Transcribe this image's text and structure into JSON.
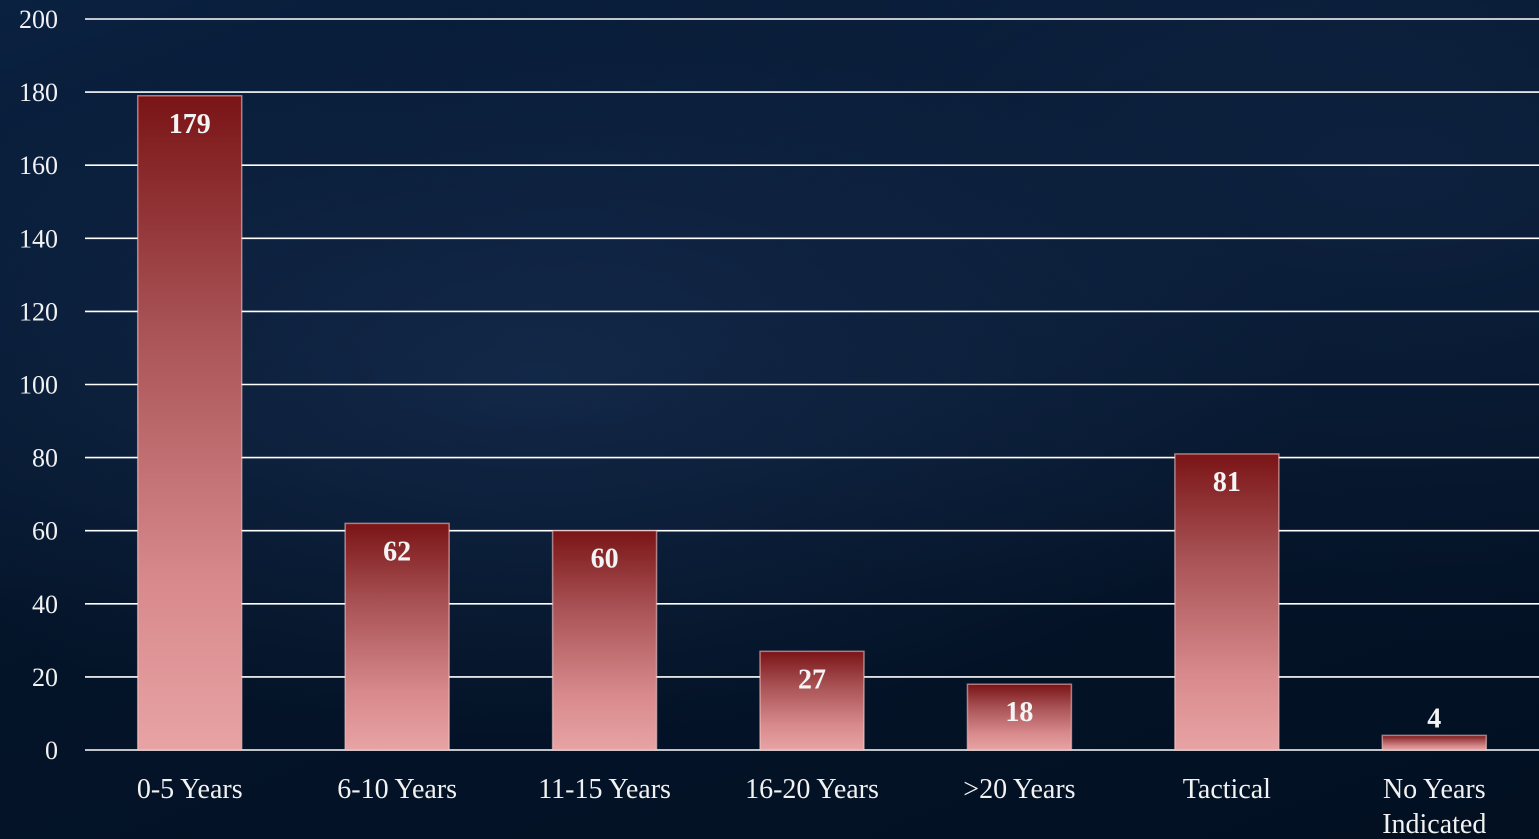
{
  "chart_data": {
    "type": "bar",
    "categories": [
      "0-5 Years",
      "6-10 Years",
      "11-15 Years",
      "16-20 Years",
      ">20 Years",
      "Tactical",
      "No Years Indicated"
    ],
    "values": [
      179,
      62,
      60,
      27,
      18,
      81,
      4
    ],
    "data_labels": [
      "179",
      "62",
      "60",
      "27",
      "18",
      "81",
      "4"
    ],
    "title": "",
    "xlabel": "",
    "ylabel": "",
    "ylim": [
      0,
      200
    ],
    "yticks": [
      0,
      20,
      40,
      60,
      80,
      100,
      120,
      140,
      160,
      180,
      200
    ],
    "grid": true,
    "legend": "none",
    "colors": {
      "bar_top": "#7a1416",
      "bar_bottom": "#d88a8c",
      "grid": "#ffffff",
      "text": "#f2f2f2",
      "background": "#04152d"
    }
  }
}
